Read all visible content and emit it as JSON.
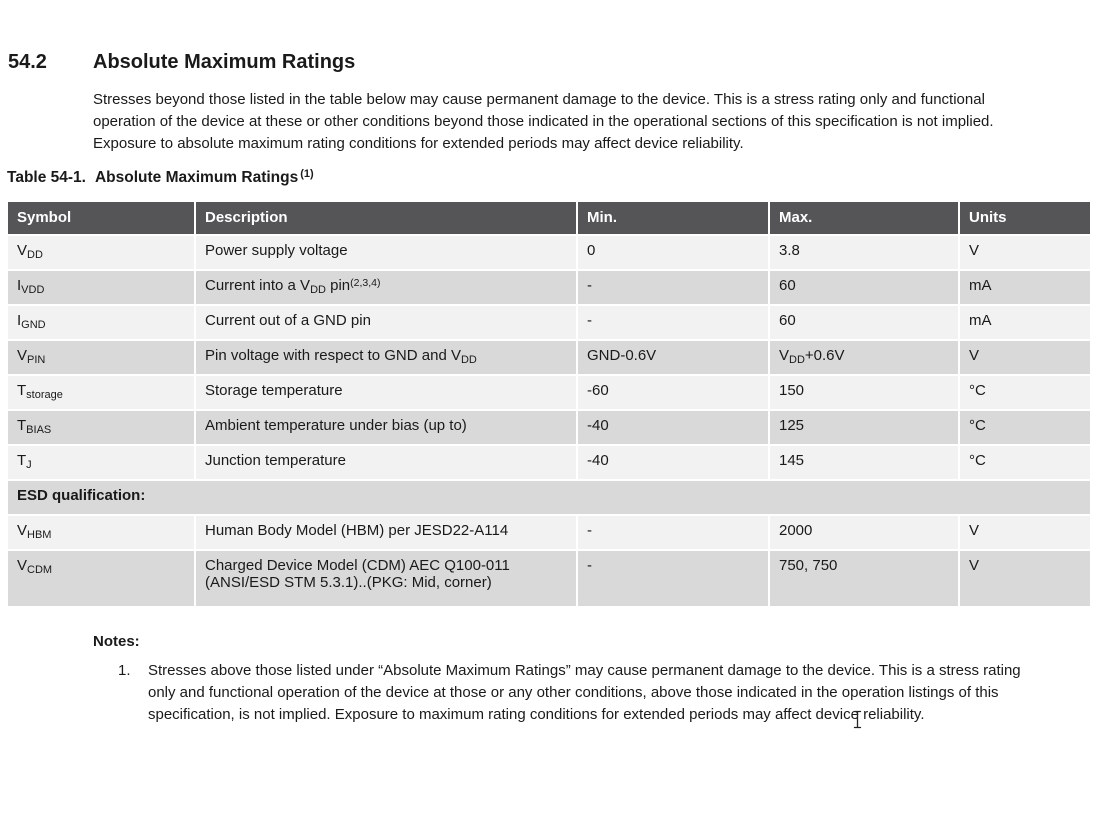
{
  "colors": {
    "table_header_bg": "#555558",
    "row_light": "#f2f2f2",
    "row_dark": "#d9d9d9",
    "text": "#1a1a1a",
    "table_header_text": "#ffffff"
  },
  "section": {
    "number": "54.2",
    "title": "Absolute Maximum Ratings",
    "intro": "Stresses beyond those listed in the table below may cause permanent damage to the device. This is a stress rating only and functional operation of the device at these or other conditions beyond those indicated in the operational sections of this specification is not implied. Exposure to absolute maximum rating conditions for extended periods may affect device reliability."
  },
  "caption": {
    "label": "Table 54-1.",
    "title": "Absolute Maximum Ratings",
    "superscript": "(1)"
  },
  "table": {
    "columns": [
      "Symbol",
      "Description",
      "Min.",
      "Max.",
      "Units"
    ],
    "rows": [
      {
        "shade": "light",
        "symbol": [
          [
            "t",
            "V"
          ],
          [
            "sub",
            "DD"
          ]
        ],
        "description": [
          [
            "t",
            "Power supply voltage"
          ]
        ],
        "min": [
          [
            "t",
            "0"
          ]
        ],
        "max": [
          [
            "t",
            "3.8"
          ]
        ],
        "units": [
          [
            "t",
            "V"
          ]
        ]
      },
      {
        "shade": "dark",
        "symbol": [
          [
            "t",
            "I"
          ],
          [
            "sub",
            "VDD"
          ]
        ],
        "description": [
          [
            "t",
            "Current into a V"
          ],
          [
            "sub",
            "DD"
          ],
          [
            "t",
            " pin"
          ],
          [
            "sup",
            "(2,3,4)"
          ]
        ],
        "min": [
          [
            "t",
            "-"
          ]
        ],
        "max": [
          [
            "t",
            "60"
          ]
        ],
        "units": [
          [
            "t",
            "mA"
          ]
        ]
      },
      {
        "shade": "light",
        "symbol": [
          [
            "t",
            "I"
          ],
          [
            "sub",
            "GND"
          ]
        ],
        "description": [
          [
            "t",
            "Current out of a GND pin"
          ]
        ],
        "min": [
          [
            "t",
            "-"
          ]
        ],
        "max": [
          [
            "t",
            "60"
          ]
        ],
        "units": [
          [
            "t",
            "mA"
          ]
        ]
      },
      {
        "shade": "dark",
        "symbol": [
          [
            "t",
            "V"
          ],
          [
            "sub",
            "PIN"
          ]
        ],
        "description": [
          [
            "t",
            "Pin voltage with respect to GND and V"
          ],
          [
            "sub",
            "DD"
          ]
        ],
        "min": [
          [
            "t",
            "GND-0.6V"
          ]
        ],
        "max": [
          [
            "t",
            "V"
          ],
          [
            "sub",
            "DD"
          ],
          [
            "t",
            "+0.6V"
          ]
        ],
        "units": [
          [
            "t",
            "V"
          ]
        ]
      },
      {
        "shade": "light",
        "symbol": [
          [
            "t",
            "T"
          ],
          [
            "sub",
            "storage"
          ]
        ],
        "description": [
          [
            "t",
            "Storage temperature"
          ]
        ],
        "min": [
          [
            "t",
            "-60"
          ]
        ],
        "max": [
          [
            "t",
            "150"
          ]
        ],
        "units": [
          [
            "t",
            "°C"
          ]
        ]
      },
      {
        "shade": "dark",
        "symbol": [
          [
            "t",
            "T"
          ],
          [
            "sub",
            "BIAS"
          ]
        ],
        "description": [
          [
            "t",
            "Ambient temperature under bias (up to)"
          ]
        ],
        "min": [
          [
            "t",
            "-40"
          ]
        ],
        "max": [
          [
            "t",
            "125"
          ]
        ],
        "units": [
          [
            "t",
            "°C"
          ]
        ]
      },
      {
        "shade": "light",
        "symbol": [
          [
            "t",
            "T"
          ],
          [
            "sub",
            "J"
          ]
        ],
        "description": [
          [
            "t",
            "Junction temperature"
          ]
        ],
        "min": [
          [
            "t",
            "-40"
          ]
        ],
        "max": [
          [
            "t",
            "145"
          ]
        ],
        "units": [
          [
            "t",
            "°C"
          ]
        ]
      },
      {
        "shade": "dark",
        "esd": true,
        "label": "ESD qualification:"
      },
      {
        "shade": "light",
        "symbol": [
          [
            "t",
            "V"
          ],
          [
            "sub",
            "HBM"
          ]
        ],
        "description": [
          [
            "t",
            "Human Body Model (HBM) per JESD22-A114"
          ]
        ],
        "min": [
          [
            "t",
            "-"
          ]
        ],
        "max": [
          [
            "t",
            "2000"
          ]
        ],
        "units": [
          [
            "t",
            "V"
          ]
        ]
      },
      {
        "shade": "dark",
        "tall": true,
        "symbol": [
          [
            "t",
            "V"
          ],
          [
            "sub",
            "CDM"
          ]
        ],
        "description": [
          [
            "t",
            "Charged Device Model (CDM) AEC Q100-011"
          ],
          [
            "br"
          ],
          [
            "t",
            "(ANSI/ESD STM 5.3.1)..(PKG: Mid, corner)"
          ]
        ],
        "min": [
          [
            "t",
            "-"
          ]
        ],
        "max": [
          [
            "t",
            "750, 750"
          ]
        ],
        "units": [
          [
            "t",
            "V"
          ]
        ]
      }
    ]
  },
  "notes": {
    "heading": "Notes:",
    "items": [
      {
        "number": "1.",
        "text": "Stresses above those listed under “Absolute Maximum Ratings” may cause permanent damage to the device. This is a stress rating only and functional operation of the device at those or any other conditions, above those indicated in the operation listings of this specification, is not implied. Exposure to maximum rating conditions for extended periods may affect device reliability."
      }
    ]
  }
}
